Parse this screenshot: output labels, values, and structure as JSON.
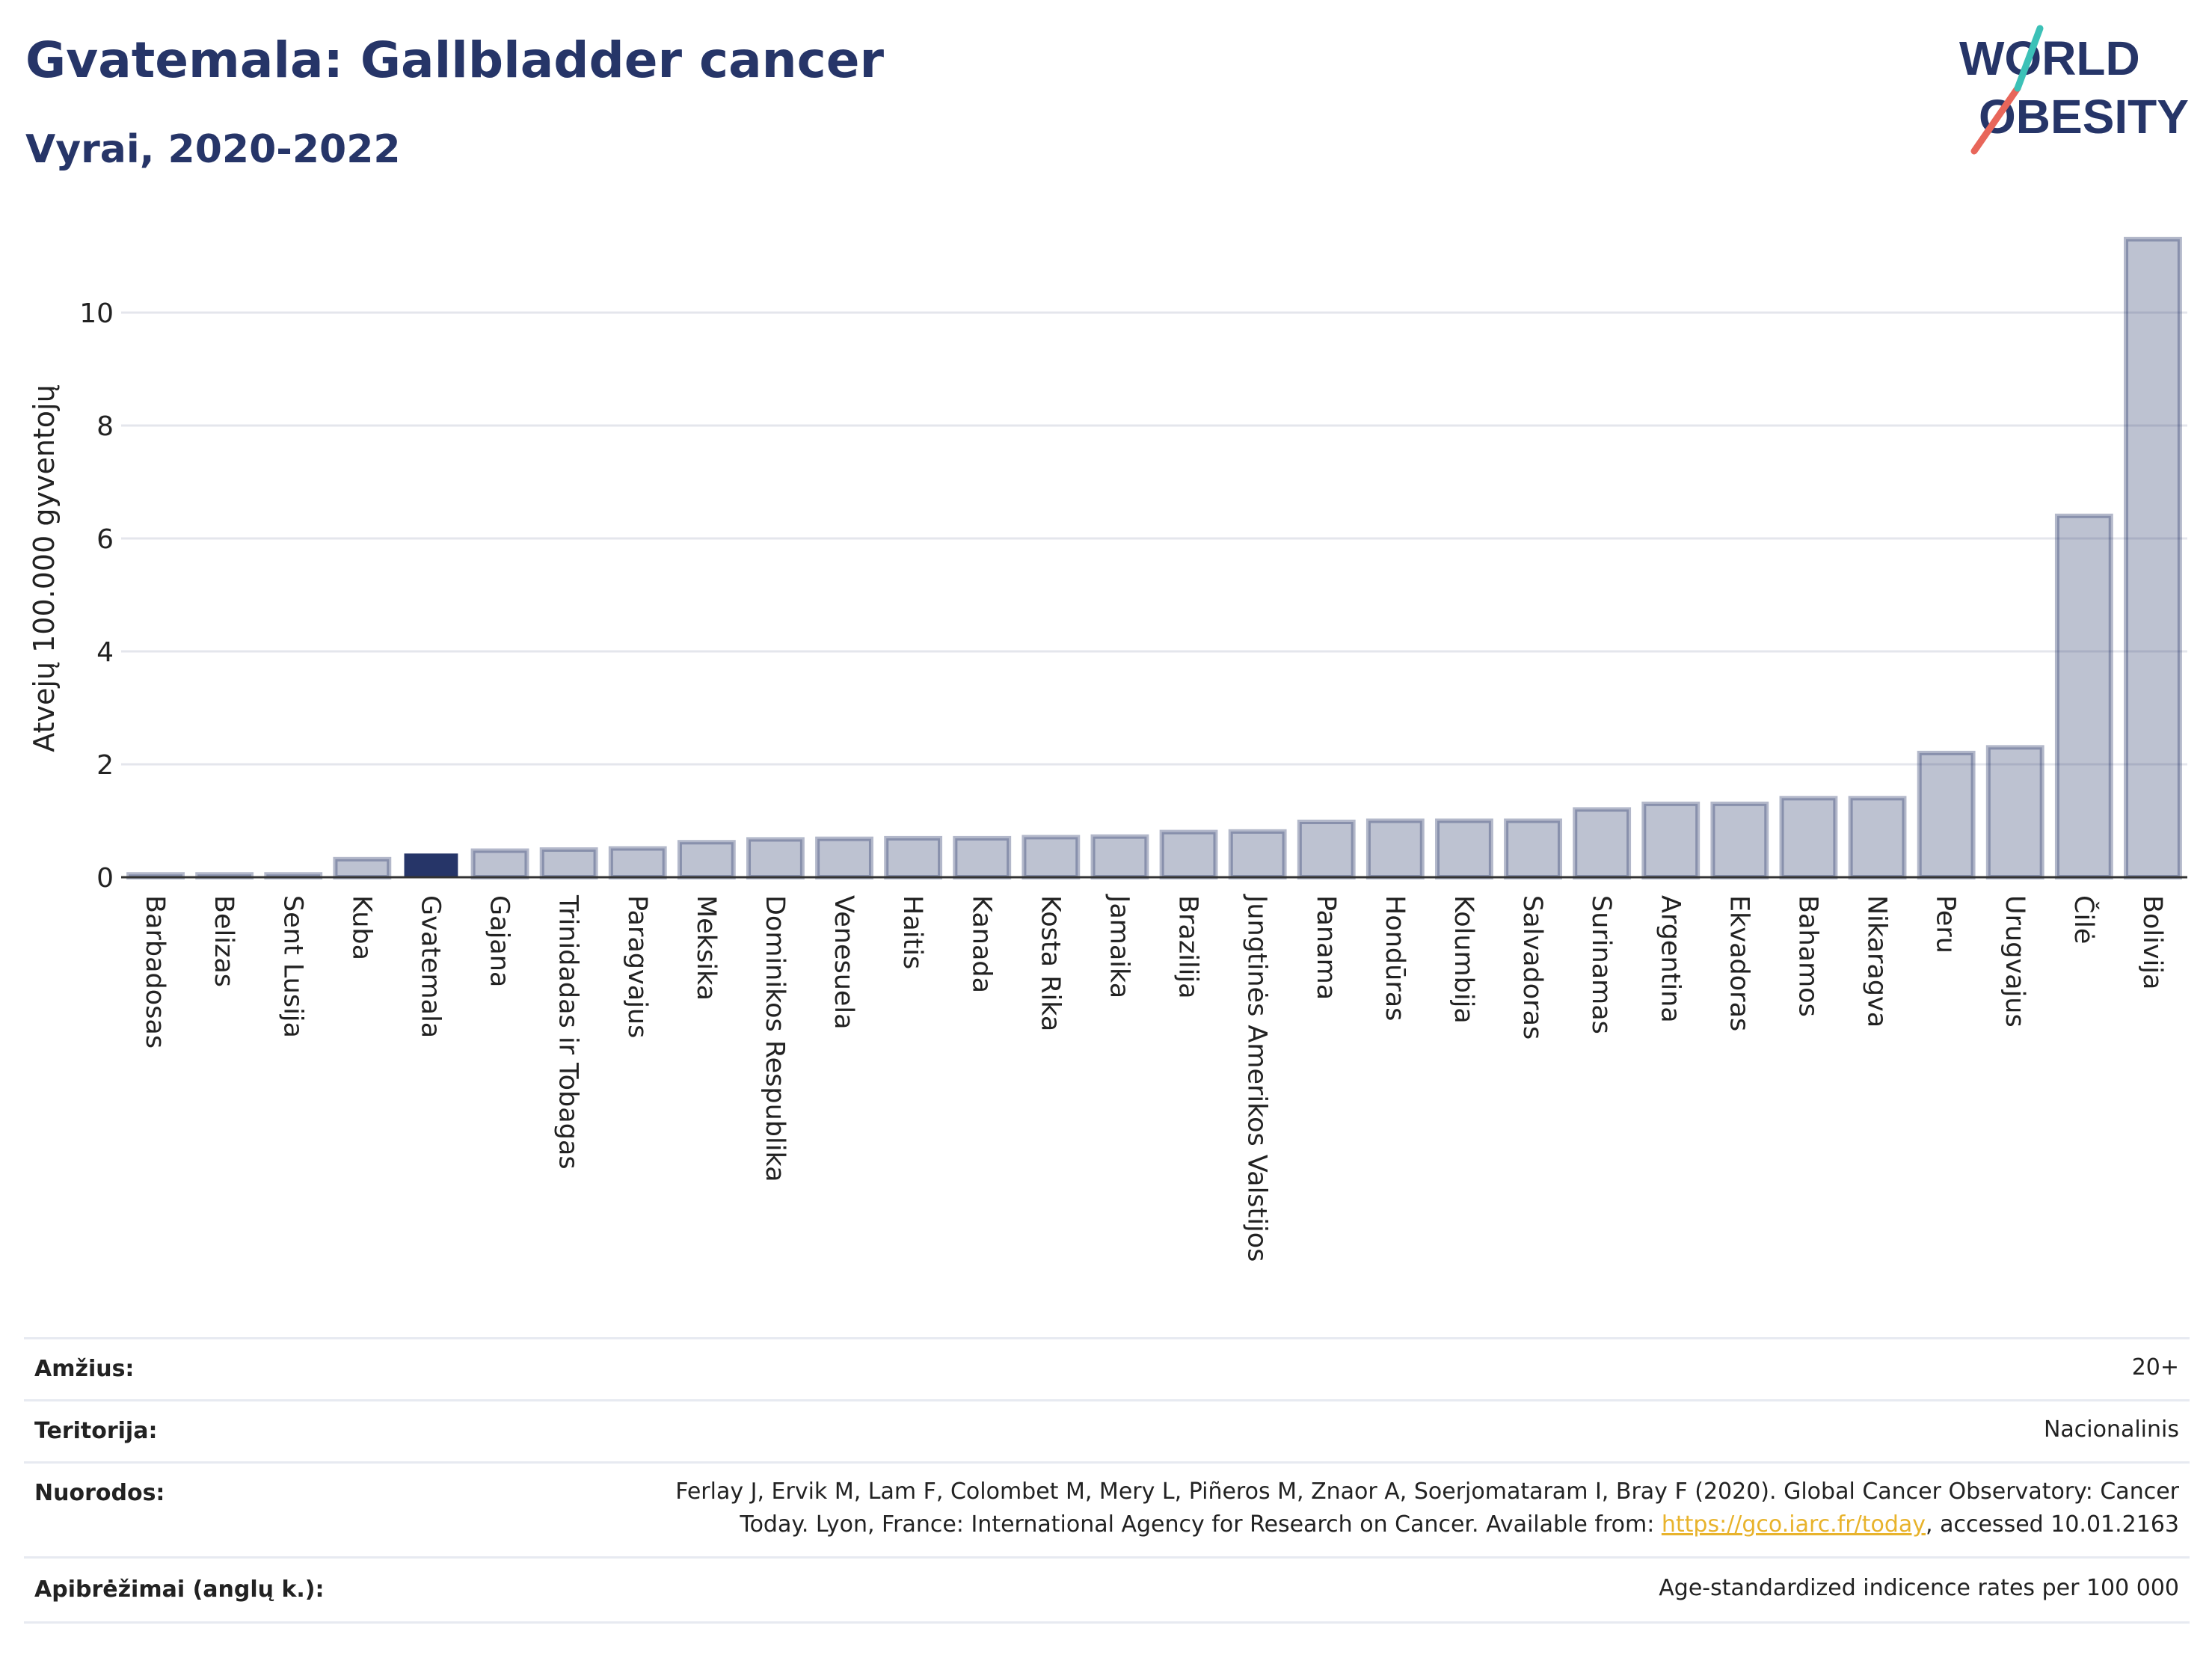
{
  "header": {
    "title": "Gvatemala: Gallbladder cancer",
    "subtitle": "Vyrai, 2020-2022"
  },
  "logo": {
    "line1": "WORLD",
    "line2": "OBESITY",
    "colors": {
      "text": "#263568",
      "slash_red": "#e8665a",
      "slash_teal": "#3cc1b7"
    }
  },
  "chart_data": {
    "type": "bar",
    "ylabel": "Atvejų 100.000 gyventojų",
    "ylim": [
      0,
      11.5
    ],
    "yticks": [
      0,
      2,
      4,
      6,
      8,
      10
    ],
    "grid": true,
    "highlight": "Gvatemala",
    "colors": {
      "bar": "#263568",
      "bar_opacity": 0.3,
      "highlight": "#263568"
    },
    "categories": [
      "Barbadosas",
      "Belizas",
      "Sent Lusija",
      "Kuba",
      "Gvatemala",
      "Gajana",
      "Trinidadas ir Tobagas",
      "Paragvajus",
      "Meksika",
      "Dominikos Respublika",
      "Venesuela",
      "Haitis",
      "Kanada",
      "Kosta Rika",
      "Jamaika",
      "Brazilija",
      "Jungtinės Amerikos Valstijos",
      "Panama",
      "Hondūras",
      "Kolumbija",
      "Salvadoras",
      "Surinamas",
      "Argentina",
      "Ekvadoras",
      "Bahamos",
      "Nikaragva",
      "Peru",
      "Urugvajus",
      "Čilė",
      "Bolivija"
    ],
    "values": [
      0.05,
      0.05,
      0.05,
      0.32,
      0.42,
      0.47,
      0.49,
      0.51,
      0.62,
      0.67,
      0.68,
      0.69,
      0.69,
      0.71,
      0.72,
      0.8,
      0.81,
      0.98,
      1.0,
      1.0,
      1.0,
      1.2,
      1.3,
      1.3,
      1.4,
      1.4,
      2.2,
      2.3,
      6.4,
      11.3
    ]
  },
  "meta": {
    "age_label": "Amžius:",
    "age_value": "20+",
    "territory_label": "Teritorija:",
    "territory_value": "Nacionalinis",
    "refs_label": "Nuorodos:",
    "refs_line1": "Ferlay J, Ervik M, Lam F, Colombet M, Mery L, Piñeros M, Znaor A, Soerjomataram I, Bray F (2020). Global Cancer Observatory: Cancer",
    "refs_line2_pre": "Today. Lyon, France: International Agency for Research on Cancer. Available from: ",
    "refs_link": "https://gco.iarc.fr/today",
    "refs_line2_post": ", accessed 10.01.2163",
    "defs_label": "Apibrėžimai (anglų k.):",
    "defs_value": "Age-standardized indicence rates per 100 000"
  }
}
